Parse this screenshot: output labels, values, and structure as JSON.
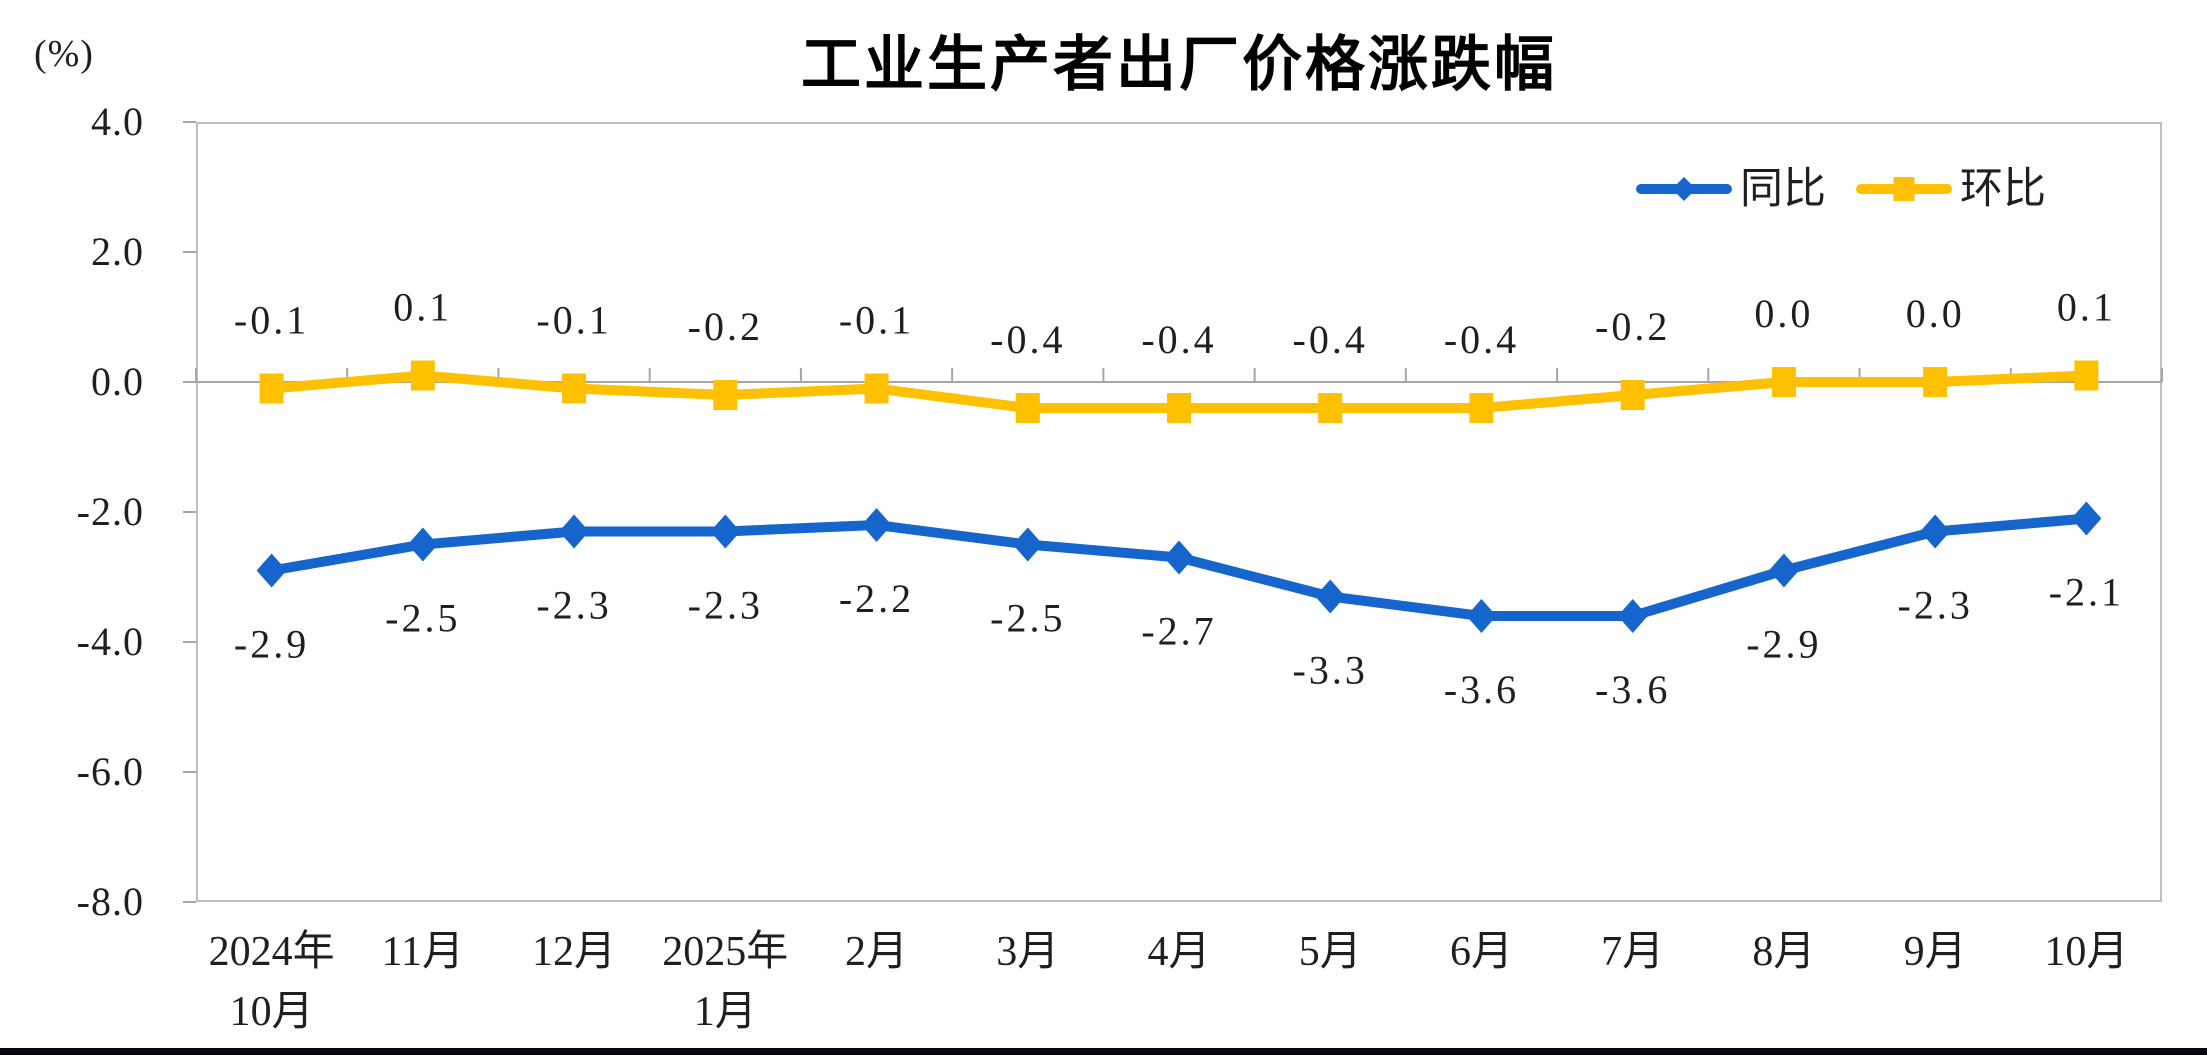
{
  "chart_data": {
    "type": "line",
    "title": "工业生产者出厂价格涨跌幅",
    "unit_label": "(%)",
    "legend_position": "top-right",
    "gridlines": "zero-line-only",
    "categories": [
      [
        "2024年",
        "10月"
      ],
      [
        "11月"
      ],
      [
        "12月"
      ],
      [
        "2025年",
        "1月"
      ],
      [
        "2月"
      ],
      [
        "3月"
      ],
      [
        "4月"
      ],
      [
        "5月"
      ],
      [
        "6月"
      ],
      [
        "7月"
      ],
      [
        "8月"
      ],
      [
        "9月"
      ],
      [
        "10月"
      ]
    ],
    "series": [
      {
        "name": "同比",
        "color": "#1565cc",
        "marker": "diamond",
        "label_position": "below",
        "values": [
          -2.9,
          -2.5,
          -2.3,
          -2.3,
          -2.2,
          -2.5,
          -2.7,
          -3.3,
          -3.6,
          -3.6,
          -2.9,
          -2.3,
          -2.1
        ]
      },
      {
        "name": "环比",
        "color": "#ffc000",
        "marker": "square",
        "label_position": "above",
        "values": [
          -0.1,
          0.1,
          -0.1,
          -0.2,
          -0.1,
          -0.4,
          -0.4,
          -0.4,
          -0.4,
          -0.2,
          0.0,
          0.0,
          0.1
        ]
      }
    ],
    "y_axis": {
      "min": -8.0,
      "max": 4.0,
      "step": 2.0,
      "tick_labels": [
        "4.0",
        "2.0",
        "0.0",
        "-2.0",
        "-4.0",
        "-6.0",
        "-8.0"
      ]
    },
    "colors": {
      "plot_border": "#bfbfbf",
      "axis_line": "#a6a6a6",
      "label_text": "#1f1f1f",
      "bottom_bar": "#06060e"
    }
  }
}
